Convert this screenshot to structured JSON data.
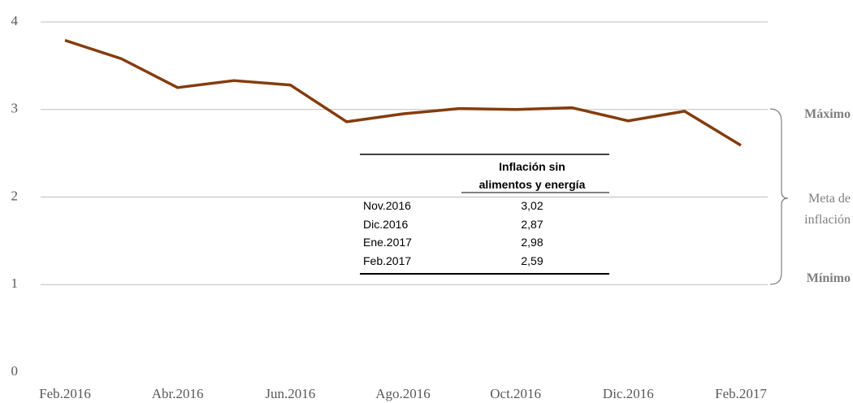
{
  "chart_data": {
    "type": "line",
    "categories": [
      "Feb.2016",
      null,
      "Abr.2016",
      null,
      "Jun.2016",
      null,
      "Ago.2016",
      null,
      "Oct.2016",
      null,
      "Dic.2016",
      null,
      "Feb.2017"
    ],
    "series": [
      {
        "color": "#843c0c",
        "values": [
          3.79,
          3.58,
          3.25,
          3.33,
          3.28,
          2.86,
          2.95,
          3.01,
          3.0,
          3.02,
          2.87,
          2.98,
          2.59
        ]
      }
    ],
    "ylim": [
      0,
      4
    ],
    "yticks": [
      0,
      1,
      2,
      3,
      4
    ],
    "grid": true,
    "annotations": {
      "max": "Máximo",
      "target": "Meta de inflación",
      "min": "Mínimo"
    },
    "table": {
      "header": "Inflación sin alimentos y energía",
      "rows": [
        [
          "Nov.2016",
          "3,02"
        ],
        [
          "Dic.2016",
          "2,87"
        ],
        [
          "Ene.2017",
          "2,98"
        ],
        [
          "Feb.2017",
          "2,59"
        ]
      ]
    }
  }
}
